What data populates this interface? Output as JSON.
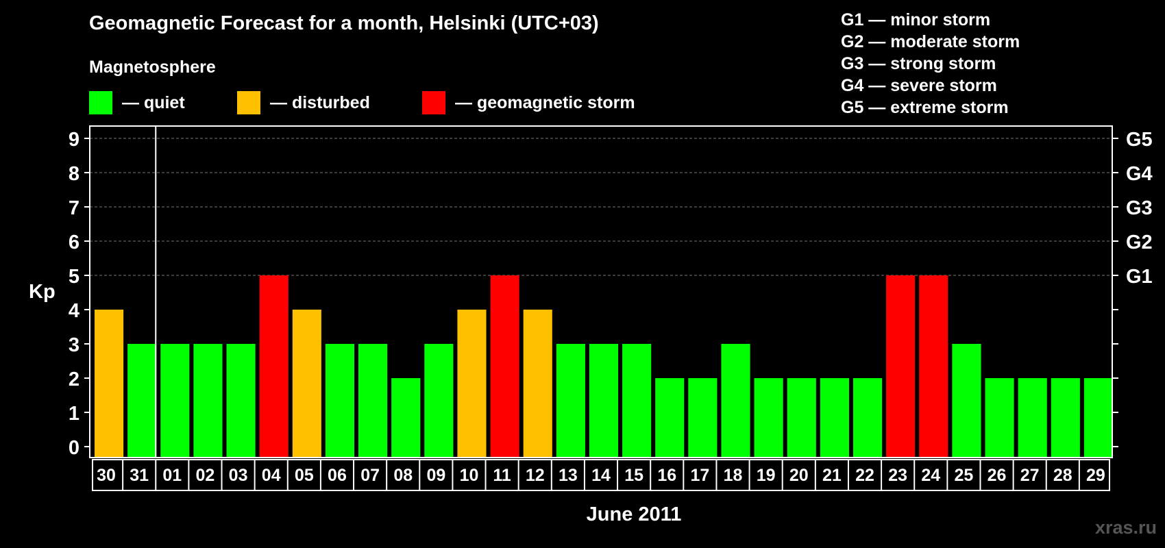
{
  "title": "Geomagnetic Forecast for a month, Helsinki (UTC+03)",
  "subtitle": "Magnetosphere",
  "legend": [
    {
      "label": "— quiet",
      "color": "#00ff00"
    },
    {
      "label": "— disturbed",
      "color": "#ffc000"
    },
    {
      "label": "— geomagnetic storm",
      "color": "#ff0000"
    }
  ],
  "storm_legend": [
    "G1 — minor storm",
    "G2 — moderate storm",
    "G3 — strong storm",
    "G4 — severe storm",
    "G5 — extreme storm"
  ],
  "watermark": "xras.ru",
  "chart_data": {
    "type": "bar",
    "title": "Geomagnetic Forecast for a month, Helsinki (UTC+03)",
    "xlabel": "June 2011",
    "ylabel": "Kp",
    "ylim": [
      0,
      9
    ],
    "yticks": [
      "0",
      "1",
      "2",
      "3",
      "4",
      "5",
      "6",
      "7",
      "8",
      "9"
    ],
    "right_ticks": [
      {
        "value": 5,
        "label": "G1"
      },
      {
        "value": 6,
        "label": "G2"
      },
      {
        "value": 7,
        "label": "G3"
      },
      {
        "value": 8,
        "label": "G4"
      },
      {
        "value": 9,
        "label": "G5"
      }
    ],
    "categories": [
      "30",
      "31",
      "01",
      "02",
      "03",
      "04",
      "05",
      "06",
      "07",
      "08",
      "09",
      "10",
      "11",
      "12",
      "13",
      "14",
      "15",
      "16",
      "17",
      "18",
      "19",
      "20",
      "21",
      "22",
      "23",
      "24",
      "25",
      "26",
      "27",
      "28",
      "29"
    ],
    "values": [
      4,
      3,
      3,
      3,
      3,
      5,
      4,
      3,
      3,
      2,
      3,
      4,
      5,
      4,
      3,
      3,
      3,
      2,
      2,
      3,
      2,
      2,
      2,
      2,
      5,
      5,
      3,
      2,
      2,
      2,
      2
    ],
    "month_divider_after_index": 1,
    "level_colors": {
      "quiet": "#00ff00",
      "disturbed": "#ffc000",
      "storm": "#ff0000"
    },
    "grid": true
  }
}
